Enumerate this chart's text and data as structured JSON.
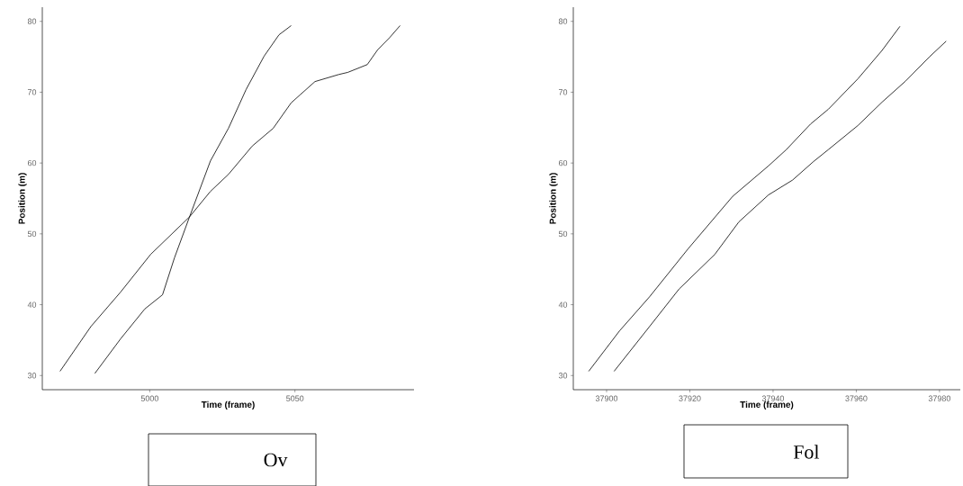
{
  "chart_data": [
    {
      "type": "line",
      "xlabel": "Time (frame)",
      "ylabel": "Position (m)",
      "xlim": [
        4963,
        5091
      ],
      "ylim": [
        28,
        82
      ],
      "xticks": [
        5000,
        5050
      ],
      "yticks": [
        30,
        40,
        50,
        60,
        70,
        80
      ],
      "grid": false,
      "marker": "none",
      "line_style": "solid",
      "annotations": [
        "Ov"
      ],
      "series": [
        {
          "color": "#000000",
          "x": [
            4969.1,
            4979.7,
            4990.0,
            5000.3,
            5013.7,
            5020.9,
            5027.1,
            5035.3,
            5042.5,
            5048.7,
            5051.7,
            5056.9,
            5065.1,
            5068.2,
            5074.9,
            5078.5,
            5082.6,
            5086.2
          ],
          "values": [
            30.6,
            36.9,
            41.8,
            47.1,
            52.4,
            56.0,
            58.4,
            62.4,
            64.9,
            68.5,
            69.6,
            71.5,
            72.5,
            72.8,
            73.9,
            76.0,
            77.7,
            79.4
          ]
        },
        {
          "color": "#000000",
          "x": [
            4981.1,
            4990.0,
            4998.3,
            5004.4,
            5008.5,
            5013.7,
            5020.9,
            5027.1,
            5033.2,
            5039.4,
            5044.5,
            5048.7
          ],
          "values": [
            30.3,
            35.2,
            39.4,
            41.4,
            46.6,
            52.4,
            60.3,
            64.9,
            70.4,
            75.1,
            78.1,
            79.4
          ]
        }
      ]
    },
    {
      "type": "line",
      "xlabel": "Time (frame)",
      "ylabel": "Position (m)",
      "xlim": [
        37892,
        37985
      ],
      "ylim": [
        28,
        82
      ],
      "xticks": [
        37900,
        37920,
        37940,
        37960,
        37980
      ],
      "yticks": [
        30,
        40,
        50,
        60,
        70,
        80
      ],
      "grid": false,
      "marker": "none",
      "line_style": "solid",
      "annotations": [
        "Fol"
      ],
      "series": [
        {
          "color": "#000000",
          "x": [
            37895.7,
            37903.1,
            37910.3,
            37919.6,
            37930.3,
            37938.9,
            37943.2,
            37949.0,
            37953.3,
            37960.4,
            37966.2,
            37970.5
          ],
          "values": [
            30.6,
            36.3,
            41.1,
            47.9,
            55.3,
            59.6,
            61.9,
            65.5,
            67.6,
            71.9,
            75.9,
            79.3
          ]
        },
        {
          "color": "#000000",
          "x": [
            37901.8,
            37910.3,
            37917.4,
            37926.0,
            37931.8,
            37938.9,
            37944.7,
            37949.7,
            37953.3,
            37960.4,
            37966.2,
            37971.9,
            37977.6,
            37981.6
          ],
          "values": [
            30.6,
            36.9,
            42.2,
            47.1,
            51.7,
            55.5,
            57.6,
            60.2,
            61.9,
            65.3,
            68.6,
            71.6,
            75.0,
            77.2
          ]
        }
      ]
    }
  ]
}
